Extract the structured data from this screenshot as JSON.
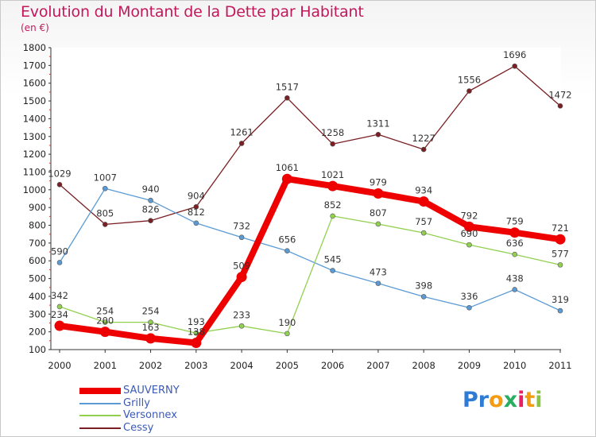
{
  "title": "Evolution du Montant de la Dette par Habitant",
  "unit": "(en €)",
  "logo": {
    "text": "Proxiti",
    "letters": [
      "P",
      "r",
      "o",
      "x",
      "i",
      "t",
      "i"
    ],
    "colors": [
      "#2e7bd6",
      "#2e7bd6",
      "#f39c12",
      "#27ae60",
      "#e91e63",
      "#f39c12",
      "#8bc34a"
    ]
  },
  "chart_data": {
    "type": "line",
    "title": "Evolution du Montant de la Dette par Habitant",
    "ylabel": "(en €)",
    "x": [
      "2000",
      "2001",
      "2002",
      "2003",
      "2004",
      "2005",
      "2006",
      "2007",
      "2008",
      "2009",
      "2010",
      "2011"
    ],
    "ylim": [
      100,
      1800
    ],
    "yticks": [
      100,
      200,
      300,
      400,
      500,
      600,
      700,
      800,
      900,
      1000,
      1100,
      1200,
      1300,
      1400,
      1500,
      1600,
      1700,
      1800
    ],
    "grid": false,
    "legend_position": "bottom-left",
    "series": [
      {
        "name": "SAUVERNY",
        "color": "#ee0000",
        "values": [
          234,
          200,
          163,
          138,
          509,
          1061,
          1021,
          979,
          934,
          792,
          759,
          721
        ]
      },
      {
        "name": "Grilly",
        "color": "#5b9bd5",
        "values": [
          590,
          1007,
          940,
          812,
          732,
          656,
          545,
          473,
          398,
          336,
          438,
          319
        ]
      },
      {
        "name": "Versonnex",
        "color": "#92d050",
        "values": [
          342,
          254,
          254,
          193,
          233,
          190,
          852,
          807,
          757,
          690,
          636,
          577
        ]
      },
      {
        "name": "Cessy",
        "color": "#7a1f24",
        "values": [
          1029,
          805,
          826,
          904,
          1261,
          1517,
          1258,
          1311,
          1227,
          1556,
          1696,
          1472
        ]
      }
    ]
  }
}
